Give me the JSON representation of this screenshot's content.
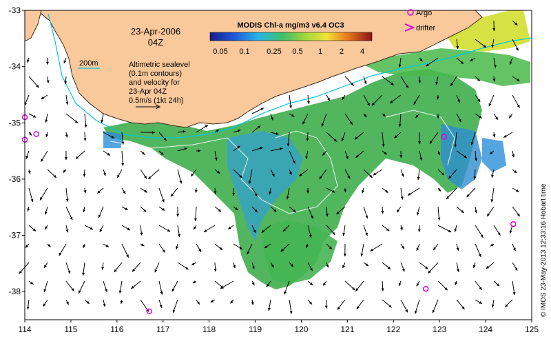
{
  "map": {
    "date_line": "23-Apr-2006",
    "time_line": "04Z",
    "colorbar_title": "MODIS Chl-a mg/m3 v6.4 OC3",
    "colorbar_ticks": [
      "0.05",
      "0.1",
      "0.25",
      "0.5",
      "1",
      "2",
      "4"
    ],
    "legend_argo": "Argo",
    "legend_drifter": "drifter",
    "isobath_label": "200m",
    "altimetry_note": [
      "Altimetric sealevel",
      "(0.1m contours)",
      "and velocity for",
      "23-Apr 04Z",
      "0.5m/s (1kt 24h)"
    ],
    "credit": "© IMOS 23-May-2013 12:33:16 Hobart time",
    "x_ticks": [
      "114",
      "115",
      "116",
      "117",
      "118",
      "119",
      "120",
      "121",
      "122",
      "123",
      "124",
      "125"
    ],
    "y_ticks": [
      "-33",
      "-34",
      "-35",
      "-36",
      "-37",
      "-38"
    ],
    "argo_floats": [
      {
        "lon": 114.0,
        "lat": -34.9
      },
      {
        "lon": 114.0,
        "lat": -35.3
      },
      {
        "lon": 114.25,
        "lat": -35.2
      },
      {
        "lon": 116.7,
        "lat": -38.35
      },
      {
        "lon": 122.7,
        "lat": -37.95
      },
      {
        "lon": 123.1,
        "lat": -35.25
      },
      {
        "lon": 124.6,
        "lat": -36.8
      }
    ],
    "colors": {
      "land": "#f9c89b",
      "coast": "#3a2a18",
      "chl_low": "#1e6fd0",
      "chl_mid": "#3fae4e",
      "chl_high": "#d4e03a",
      "isobath": "#00c8e0",
      "argo": "#e000e0",
      "arrow": "#000000"
    }
  }
}
